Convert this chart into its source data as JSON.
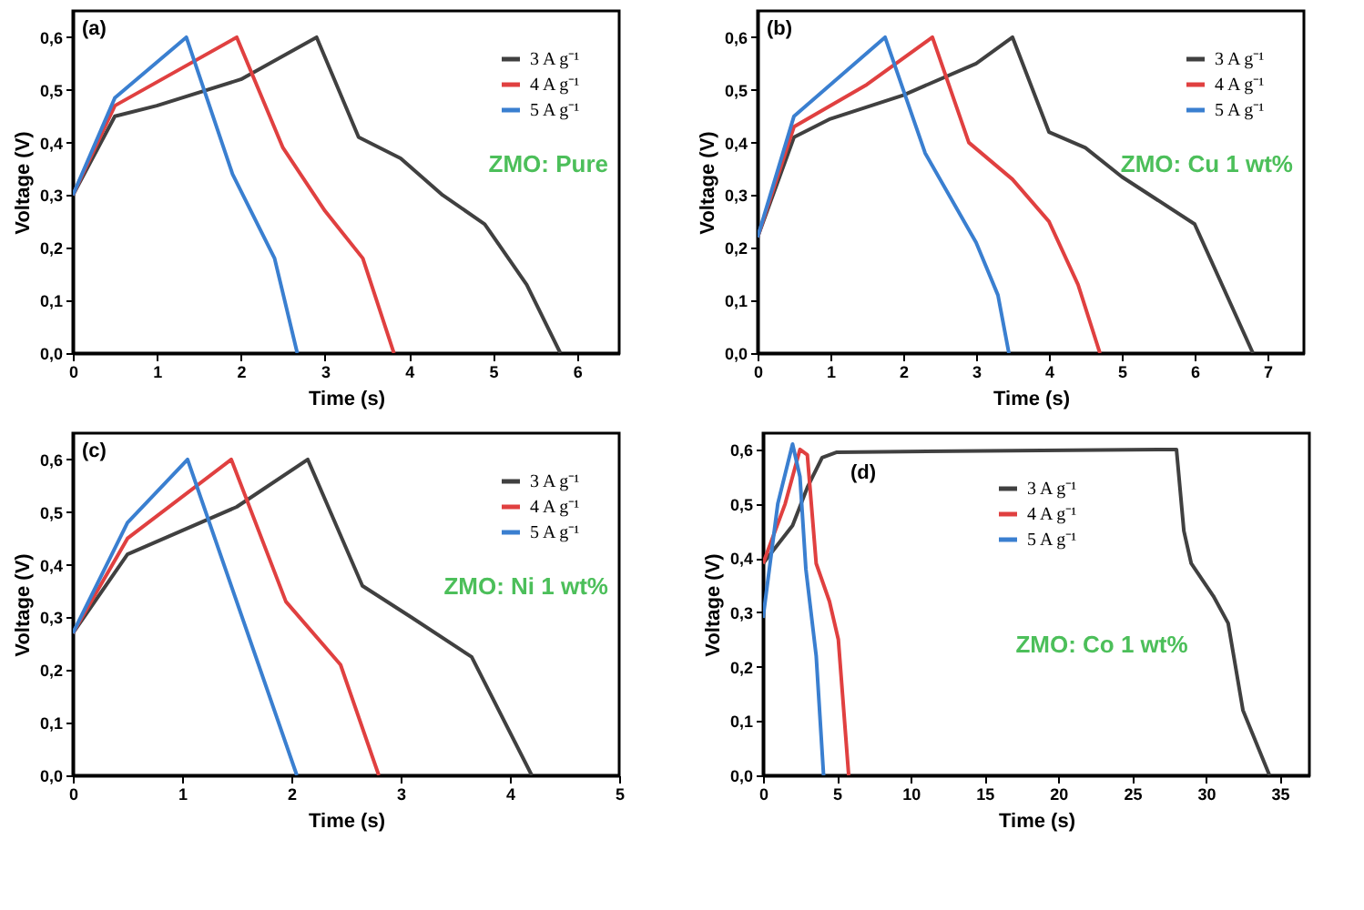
{
  "chart_data": [
    {
      "type": "line",
      "xlabel": "Time (s)",
      "ylabel": "Voltage (V)",
      "annotations": [
        "(a)",
        "ZMO: Pure"
      ],
      "xlim": [
        0,
        6.5
      ],
      "xticks": [
        0,
        1,
        2,
        3,
        4,
        5,
        6
      ],
      "ylim": [
        0,
        0.65
      ],
      "yticks": [
        {
          "value": 0,
          "label": "0,0"
        },
        {
          "value": 0.1,
          "label": "0,1"
        },
        {
          "value": 0.2,
          "label": "0,2"
        },
        {
          "value": 0.3,
          "label": "0,3"
        },
        {
          "value": 0.4,
          "label": "0,4"
        },
        {
          "value": 0.5,
          "label": "0,5"
        },
        {
          "value": 0.6,
          "label": "0,6"
        }
      ],
      "grid": false,
      "legend": "top right",
      "line_style": "solid",
      "marker": "none",
      "series": [
        {
          "name": "3 A g⁻¹",
          "color": "#404040",
          "x": [
            0,
            0.5,
            1,
            2,
            2.9,
            3.4,
            3.9,
            4.4,
            4.9,
            5.4,
            5.8
          ],
          "values": [
            0.3,
            0.45,
            0.47,
            0.52,
            0.6,
            0.41,
            0.37,
            0.3,
            0.245,
            0.13,
            0
          ]
        },
        {
          "name": "4 A g⁻¹",
          "color": "#e04040",
          "x": [
            0,
            0.5,
            1.95,
            2.5,
            3,
            3.45,
            3.82
          ],
          "values": [
            0.3,
            0.47,
            0.6,
            0.39,
            0.27,
            0.18,
            0
          ]
        },
        {
          "name": "5 A g⁻¹",
          "color": "#3a7fd0",
          "x": [
            0,
            0.5,
            1.35,
            1.9,
            2.4,
            2.67
          ],
          "values": [
            0.3,
            0.485,
            0.6,
            0.34,
            0.18,
            0
          ]
        }
      ]
    },
    {
      "type": "line",
      "xlabel": "Time (s)",
      "ylabel": "Voltage (V)",
      "annotations": [
        "(b)",
        "ZMO: Cu 1 wt%"
      ],
      "xlim": [
        0,
        7.5
      ],
      "xticks": [
        0,
        1,
        2,
        3,
        4,
        5,
        6,
        7
      ],
      "ylim": [
        0,
        0.65
      ],
      "yticks": [
        {
          "value": 0,
          "label": "0,0"
        },
        {
          "value": 0.1,
          "label": "0,1"
        },
        {
          "value": 0.2,
          "label": "0,2"
        },
        {
          "value": 0.3,
          "label": "0,3"
        },
        {
          "value": 0.4,
          "label": "0,4"
        },
        {
          "value": 0.5,
          "label": "0,5"
        },
        {
          "value": 0.6,
          "label": "0,6"
        }
      ],
      "grid": false,
      "legend": "top right",
      "line_style": "solid",
      "marker": "none",
      "series": [
        {
          "name": "3 A g⁻¹",
          "color": "#404040",
          "x": [
            0,
            0.5,
            1,
            2,
            3,
            3.5,
            4,
            4.5,
            5,
            6,
            6.8
          ],
          "values": [
            0.22,
            0.41,
            0.445,
            0.49,
            0.55,
            0.6,
            0.42,
            0.39,
            0.335,
            0.245,
            0
          ]
        },
        {
          "name": "4 A g⁻¹",
          "color": "#e04040",
          "x": [
            0,
            0.5,
            1.5,
            2.4,
            2.9,
            3.5,
            4,
            4.4,
            4.7
          ],
          "values": [
            0.22,
            0.43,
            0.51,
            0.6,
            0.4,
            0.33,
            0.25,
            0.13,
            0
          ]
        },
        {
          "name": "5 A g⁻¹",
          "color": "#3a7fd0",
          "x": [
            0,
            0.5,
            1.75,
            2.3,
            3,
            3.3,
            3.45
          ],
          "values": [
            0.22,
            0.45,
            0.6,
            0.38,
            0.21,
            0.11,
            0
          ]
        }
      ]
    },
    {
      "type": "line",
      "xlabel": "Time (s)",
      "ylabel": "Voltage (V)",
      "annotations": [
        "(c)",
        "ZMO: Ni 1 wt%"
      ],
      "xlim": [
        0,
        5
      ],
      "xticks": [
        0,
        1,
        2,
        3,
        4,
        5
      ],
      "ylim": [
        0,
        0.65
      ],
      "yticks": [
        {
          "value": 0,
          "label": "0,0"
        },
        {
          "value": 0.1,
          "label": "0,1"
        },
        {
          "value": 0.2,
          "label": "0,2"
        },
        {
          "value": 0.3,
          "label": "0,3"
        },
        {
          "value": 0.4,
          "label": "0,4"
        },
        {
          "value": 0.5,
          "label": "0,5"
        },
        {
          "value": 0.6,
          "label": "0,6"
        }
      ],
      "grid": false,
      "legend": "top right",
      "line_style": "solid",
      "marker": "none",
      "series": [
        {
          "name": "3 A g⁻¹",
          "color": "#404040",
          "x": [
            0,
            0.5,
            1.5,
            2.15,
            2.65,
            3.1,
            3.65,
            4.2
          ],
          "values": [
            0.27,
            0.42,
            0.51,
            0.6,
            0.36,
            0.3,
            0.225,
            0
          ]
        },
        {
          "name": "4 A g⁻¹",
          "color": "#e04040",
          "x": [
            0,
            0.5,
            1.45,
            1.95,
            2.45,
            2.8
          ],
          "values": [
            0.27,
            0.45,
            0.6,
            0.33,
            0.21,
            0
          ]
        },
        {
          "name": "5 A g⁻¹",
          "color": "#3a7fd0",
          "x": [
            0,
            0.5,
            1.05,
            2.05
          ],
          "values": [
            0.27,
            0.48,
            0.6,
            0
          ]
        }
      ]
    },
    {
      "type": "line",
      "xlabel": "Time (s)",
      "ylabel": "Voltage (V)",
      "annotations": [
        "(d)",
        "ZMO: Co 1 wt%"
      ],
      "xlim": [
        0,
        37
      ],
      "xticks": [
        0,
        5,
        10,
        15,
        20,
        25,
        30,
        35
      ],
      "ylim": [
        0,
        0.63
      ],
      "yticks": [
        {
          "value": 0,
          "label": "0,0"
        },
        {
          "value": 0.1,
          "label": "0,1"
        },
        {
          "value": 0.2,
          "label": "0,2"
        },
        {
          "value": 0.3,
          "label": "0,3"
        },
        {
          "value": 0.4,
          "label": "0,4"
        },
        {
          "value": 0.5,
          "label": "0,5"
        },
        {
          "value": 0.6,
          "label": "0,6"
        }
      ],
      "grid": false,
      "legend": "top",
      "line_style": "solid",
      "marker": "none",
      "series": [
        {
          "name": "3 A g⁻¹",
          "color": "#404040",
          "x": [
            0,
            2,
            3,
            4,
            5,
            28,
            28.5,
            29,
            30.5,
            31.5,
            32.5,
            34.3
          ],
          "values": [
            0.39,
            0.46,
            0.53,
            0.585,
            0.595,
            0.6,
            0.45,
            0.39,
            0.33,
            0.28,
            0.12,
            0
          ]
        },
        {
          "name": "4 A g⁻¹",
          "color": "#e04040",
          "x": [
            0,
            1.5,
            2.5,
            3,
            3.6,
            4.5,
            5.1,
            5.8
          ],
          "values": [
            0.39,
            0.5,
            0.6,
            0.59,
            0.39,
            0.32,
            0.25,
            0
          ]
        },
        {
          "name": "5 A g⁻¹",
          "color": "#3a7fd0",
          "x": [
            0,
            1,
            2,
            2.5,
            2.9,
            3.6,
            4.1
          ],
          "values": [
            0.29,
            0.5,
            0.61,
            0.55,
            0.38,
            0.22,
            0
          ]
        }
      ]
    }
  ]
}
